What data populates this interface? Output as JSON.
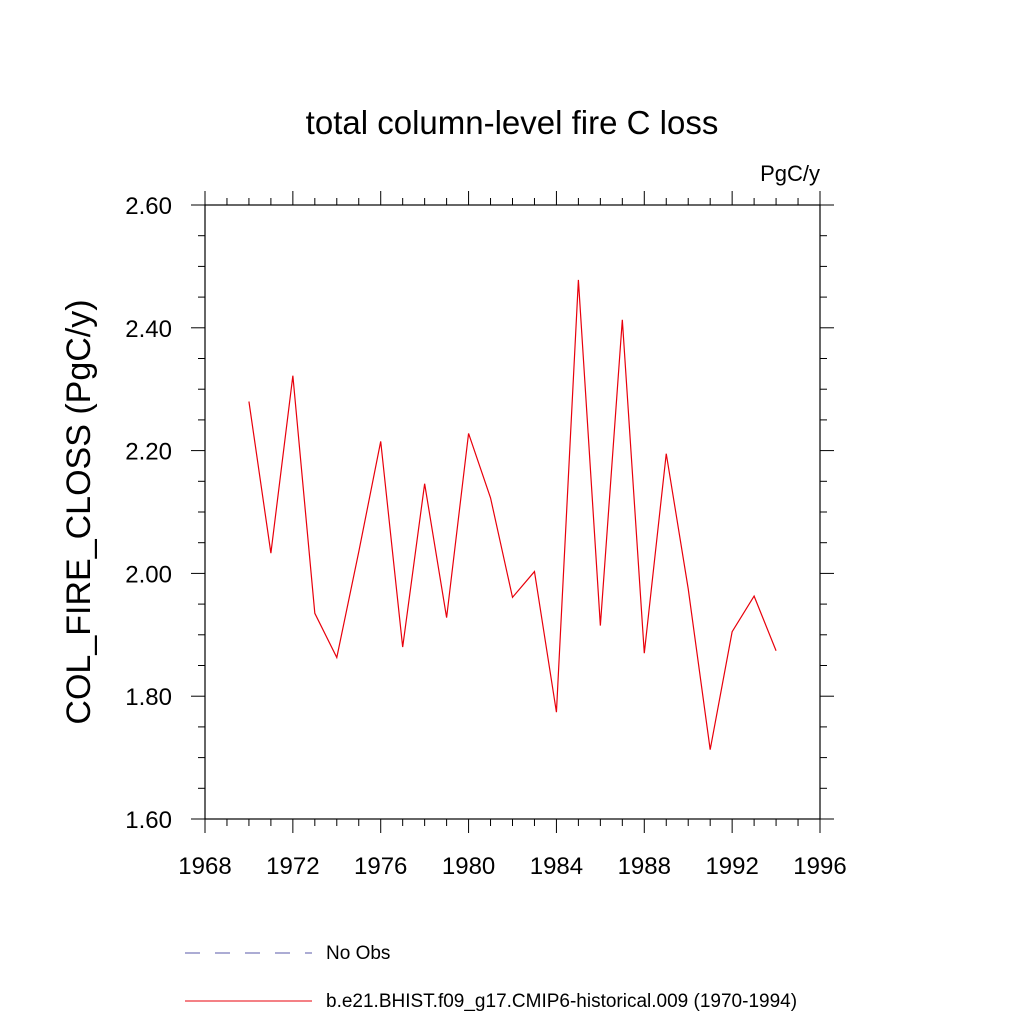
{
  "chart_data": {
    "type": "line",
    "title": "total column-level fire C loss",
    "units_label": "PgC/y",
    "ylabel": "COL_FIRE_CLOSS  (PgC/y)",
    "xlabel": "",
    "xlim": [
      1968,
      1996
    ],
    "ylim": [
      1.6,
      2.6
    ],
    "x_ticks": [
      1968,
      1972,
      1976,
      1980,
      1984,
      1988,
      1992,
      1996
    ],
    "x_tick_labels": [
      "1968",
      "1972",
      "1976",
      "1980",
      "1984",
      "1988",
      "1992",
      "1996"
    ],
    "y_ticks": [
      1.6,
      1.8,
      2.0,
      2.2,
      2.4,
      2.6
    ],
    "y_tick_labels": [
      "1.60",
      "1.80",
      "2.00",
      "2.20",
      "2.40",
      "2.60"
    ],
    "grid": false,
    "series": [
      {
        "name": "b.e21.BHIST.f09_g17.CMIP6-historical.009 (1970-1994)",
        "color": "#e8000b",
        "style": "solid",
        "x": [
          1970,
          1971,
          1972,
          1973,
          1974,
          1975,
          1976,
          1977,
          1978,
          1979,
          1980,
          1981,
          1982,
          1983,
          1984,
          1985,
          1986,
          1987,
          1988,
          1989,
          1990,
          1991,
          1992,
          1993,
          1994
        ],
        "values": [
          2.28,
          2.033,
          2.322,
          1.935,
          1.863,
          2.035,
          2.215,
          1.88,
          2.146,
          1.928,
          2.228,
          2.123,
          1.961,
          2.003,
          1.774,
          2.478,
          1.915,
          2.413,
          1.87,
          2.195,
          1.975,
          1.713,
          1.905,
          1.963,
          1.874
        ]
      }
    ],
    "legend": [
      {
        "label": "No Obs",
        "color": "#5a5aa8",
        "style": "dashed"
      },
      {
        "label": "b.e21.BHIST.f09_g17.CMIP6-historical.009 (1970-1994)",
        "color": "#e8000b",
        "style": "solid"
      }
    ]
  }
}
